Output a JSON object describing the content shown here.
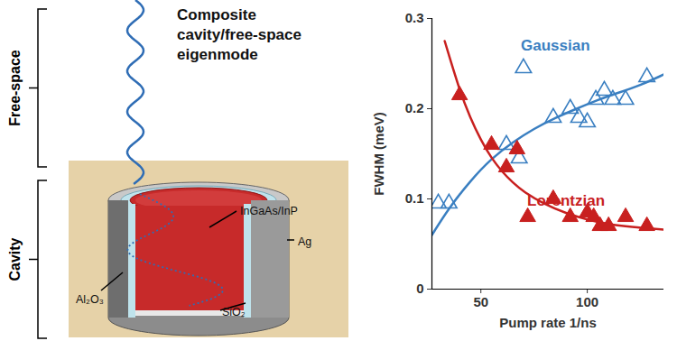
{
  "chart_data": {
    "type": "scatter",
    "x_label": "Pump rate 1/ns",
    "y_label": "FWHM (meV)",
    "xlim": [
      27,
      136
    ],
    "xticks": [
      50,
      100
    ],
    "ylim": [
      0,
      0.3
    ],
    "yticks": [
      0,
      0.1,
      0.2,
      0.3
    ],
    "series": [
      {
        "name": "Gaussian",
        "color": "#3a7fc1",
        "marker": "triangle-open",
        "x": [
          30,
          35,
          62,
          68,
          70,
          84,
          92,
          96,
          100,
          104,
          108,
          112,
          118,
          128
        ],
        "values": [
          0.095,
          0.095,
          0.16,
          0.145,
          0.245,
          0.19,
          0.2,
          0.19,
          0.185,
          0.21,
          0.22,
          0.21,
          0.21,
          0.235
        ],
        "fit": {
          "type": "line",
          "x": [
            27,
            35,
            45,
            55,
            65,
            75,
            85,
            95,
            105,
            115,
            125,
            136
          ],
          "values": [
            0.06,
            0.09,
            0.12,
            0.145,
            0.163,
            0.178,
            0.19,
            0.2,
            0.21,
            0.218,
            0.226,
            0.238
          ]
        }
      },
      {
        "name": "Lorentzian",
        "color": "#c8201f",
        "marker": "triangle",
        "x": [
          40,
          55,
          62,
          67,
          72,
          84,
          92,
          100,
          103,
          106,
          110,
          118,
          128
        ],
        "values": [
          0.215,
          0.16,
          0.135,
          0.155,
          0.08,
          0.1,
          0.08,
          0.085,
          0.08,
          0.07,
          0.07,
          0.08,
          0.07
        ],
        "fit": {
          "type": "line",
          "x": [
            33,
            40,
            45,
            50,
            55,
            60,
            65,
            70,
            80,
            90,
            100,
            110,
            120,
            136
          ],
          "values": [
            0.275,
            0.22,
            0.19,
            0.165,
            0.145,
            0.13,
            0.118,
            0.108,
            0.094,
            0.084,
            0.077,
            0.072,
            0.069,
            0.066
          ]
        }
      }
    ]
  },
  "diagram": {
    "regions": [
      {
        "label": "Free-space"
      },
      {
        "label": "Cavity"
      }
    ],
    "mode_label": [
      "Composite",
      "cavity/free-space",
      "eigenmode"
    ],
    "materials": [
      "InGaAs/InP",
      "Ag",
      "Al₂O₃",
      "SiO₂"
    ]
  }
}
